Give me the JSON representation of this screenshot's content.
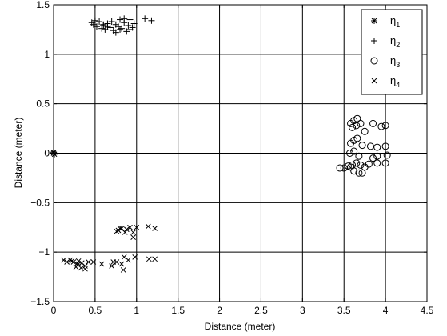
{
  "chart_data": {
    "type": "scatter",
    "title": "",
    "xlabel": "Distance (meter)",
    "ylabel": "Distance (meter)",
    "xlim": [
      0,
      4.5
    ],
    "ylim": [
      -1.5,
      1.5
    ],
    "x_ticks": [
      0,
      0.5,
      1,
      1.5,
      2,
      2.5,
      3,
      3.5,
      4,
      4.5
    ],
    "x_tick_labels": [
      "0",
      "0.5",
      "1",
      "1.5",
      "2",
      "2.5",
      "3",
      "3.5",
      "4",
      "4.5"
    ],
    "y_ticks": [
      -1.5,
      -1,
      -0.5,
      0,
      0.5,
      1,
      1.5
    ],
    "y_tick_labels": [
      "−1.5",
      "−1",
      "−0.5",
      "0",
      "0.5",
      "1",
      "1.5"
    ],
    "grid": true,
    "legend_position": "top-right",
    "series": [
      {
        "name": "η1",
        "name_base": "η",
        "name_sub": "1",
        "marker": "asterisk",
        "x": [
          0.0,
          0.01,
          0.0
        ],
        "y": [
          0.0,
          -0.01,
          0.01
        ]
      },
      {
        "name": "η2",
        "name_base": "η",
        "name_sub": "2",
        "marker": "plus",
        "x": [
          0.46,
          0.48,
          0.5,
          0.52,
          0.55,
          0.58,
          0.6,
          0.62,
          0.65,
          0.68,
          0.7,
          0.72,
          0.75,
          0.78,
          0.8,
          0.82,
          0.85,
          0.88,
          0.9,
          0.92,
          0.95,
          0.97,
          0.75,
          0.8,
          0.85,
          0.6,
          0.65,
          0.92,
          1.1,
          1.18
        ],
        "y": [
          1.32,
          1.3,
          1.34,
          1.28,
          1.33,
          1.26,
          1.29,
          1.25,
          1.31,
          1.27,
          1.33,
          1.24,
          1.3,
          1.28,
          1.35,
          1.26,
          1.32,
          1.23,
          1.29,
          1.35,
          1.27,
          1.31,
          1.22,
          1.25,
          1.36,
          1.3,
          1.28,
          1.25,
          1.36,
          1.34
        ]
      },
      {
        "name": "η3",
        "name_base": "η",
        "name_sub": "3",
        "marker": "circle",
        "x": [
          3.58,
          3.62,
          3.66,
          3.7,
          3.6,
          3.65,
          3.75,
          3.85,
          3.95,
          3.58,
          3.62,
          3.66,
          3.72,
          3.82,
          3.9,
          4.0,
          3.57,
          3.62,
          3.68,
          3.85,
          3.9,
          4.02,
          3.45,
          3.5,
          3.55,
          3.6,
          3.65,
          3.7,
          3.75,
          3.8,
          3.9,
          4.0,
          3.62,
          3.68,
          3.72,
          3.58,
          4.0
        ],
        "y": [
          0.3,
          0.33,
          0.35,
          0.3,
          0.26,
          0.28,
          0.22,
          0.3,
          0.27,
          0.1,
          0.13,
          0.15,
          0.08,
          0.07,
          0.06,
          0.07,
          0.0,
          0.02,
          -0.03,
          -0.05,
          -0.03,
          -0.02,
          -0.15,
          -0.15,
          -0.13,
          -0.12,
          -0.1,
          -0.12,
          -0.14,
          -0.11,
          -0.1,
          -0.1,
          -0.18,
          -0.2,
          -0.2,
          -0.14,
          0.28
        ]
      },
      {
        "name": "η4",
        "name_base": "η",
        "name_sub": "4",
        "marker": "x",
        "x": [
          0.12,
          0.16,
          0.2,
          0.24,
          0.28,
          0.3,
          0.34,
          0.38,
          0.42,
          0.48,
          0.58,
          0.7,
          0.76,
          0.82,
          0.85,
          0.9,
          0.98,
          0.27,
          0.33,
          0.38,
          0.22,
          0.3,
          0.78,
          0.82,
          0.88,
          0.92,
          0.96,
          1.0,
          0.76,
          0.8,
          0.86,
          0.96,
          1.14,
          1.22,
          1.15,
          1.22,
          0.72,
          0.84
        ],
        "y": [
          -1.08,
          -1.1,
          -1.08,
          -1.1,
          -1.12,
          -1.09,
          -1.11,
          -1.14,
          -1.1,
          -1.1,
          -1.12,
          -1.14,
          -1.1,
          -1.12,
          -1.05,
          -1.08,
          -1.05,
          -1.15,
          -1.16,
          -1.17,
          -1.09,
          -1.12,
          -0.78,
          -0.76,
          -0.77,
          -0.75,
          -0.8,
          -0.75,
          -0.79,
          -0.76,
          -0.8,
          -0.85,
          -0.74,
          -0.76,
          -1.07,
          -1.07,
          -1.1,
          -1.18
        ]
      }
    ]
  }
}
